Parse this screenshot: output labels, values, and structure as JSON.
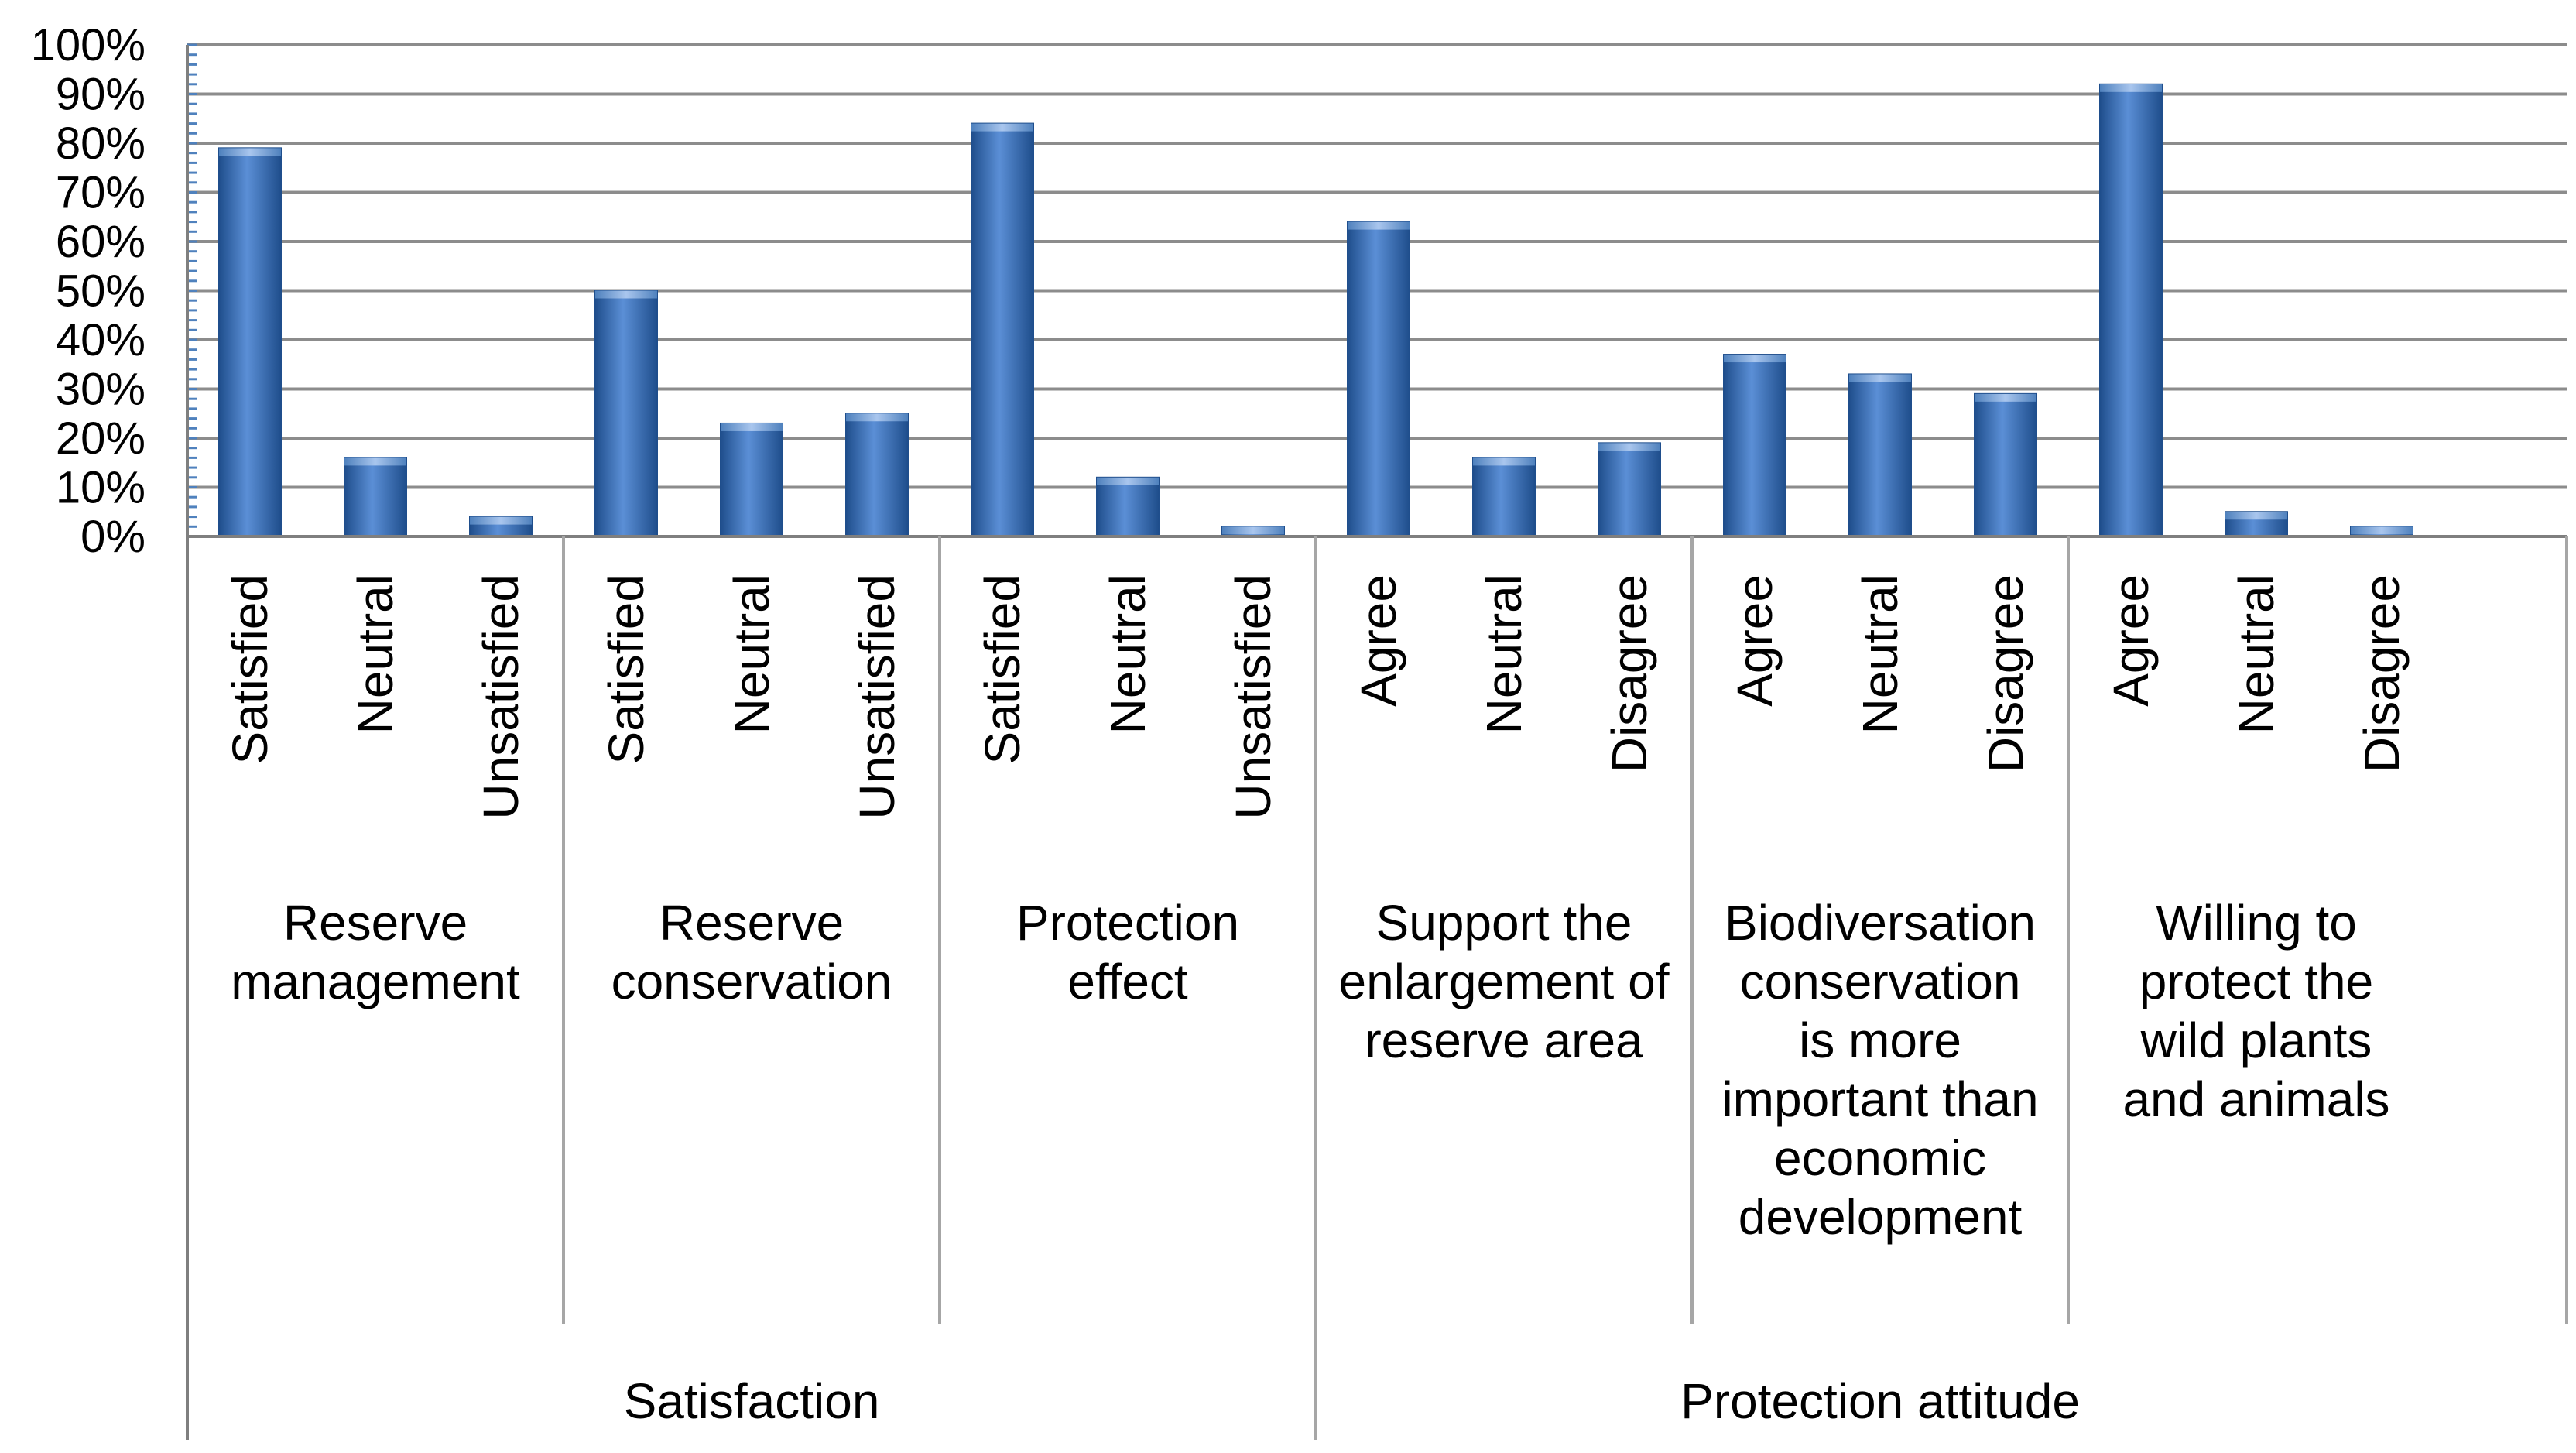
{
  "chart_data": {
    "type": "bar",
    "title": "",
    "xlabel": "",
    "ylabel": "",
    "ylim": [
      0,
      100
    ],
    "ytick_labels": [
      "0%",
      "10%",
      "20%",
      "30%",
      "40%",
      "50%",
      "60%",
      "70%",
      "80%",
      "90%",
      "100%"
    ],
    "colors": {
      "bar": "#4f81bd",
      "bar_dark": "#1f4e8c",
      "bar_light": "#8db3e2",
      "grid": "#8c8c8c"
    },
    "supergroups": [
      {
        "label": "Satisfaction",
        "groups": [
          {
            "label": "Reserve management",
            "categories": [
              {
                "label": "Satisfied",
                "value": 79
              },
              {
                "label": "Neutral",
                "value": 16
              },
              {
                "label": "Unsatisfied",
                "value": 4
              }
            ]
          },
          {
            "label": "Reserve conservation",
            "categories": [
              {
                "label": "Satisfied",
                "value": 50
              },
              {
                "label": "Neutral",
                "value": 23
              },
              {
                "label": "Unsatisfied",
                "value": 25
              }
            ]
          },
          {
            "label": "Protection effect",
            "categories": [
              {
                "label": "Satisfied",
                "value": 84
              },
              {
                "label": "Neutral",
                "value": 12
              },
              {
                "label": "Unsatisfied",
                "value": 2
              }
            ]
          }
        ]
      },
      {
        "label": "Protection attitude",
        "groups": [
          {
            "label": "Support the enlargement of reserve area",
            "categories": [
              {
                "label": "Agree",
                "value": 64
              },
              {
                "label": "Neutral",
                "value": 16
              },
              {
                "label": "Disagree",
                "value": 19
              }
            ]
          },
          {
            "label": "Biodiversation conservation is more important than economic development",
            "categories": [
              {
                "label": "Agree",
                "value": 37
              },
              {
                "label": "Neutral",
                "value": 33
              },
              {
                "label": "Disagree",
                "value": 29
              }
            ]
          },
          {
            "label": "Willing to protect the wild plants and animals",
            "categories": [
              {
                "label": "Agree",
                "value": 92
              },
              {
                "label": "Neutral",
                "value": 5
              },
              {
                "label": "Disagree",
                "value": 2
              }
            ]
          }
        ]
      }
    ]
  }
}
